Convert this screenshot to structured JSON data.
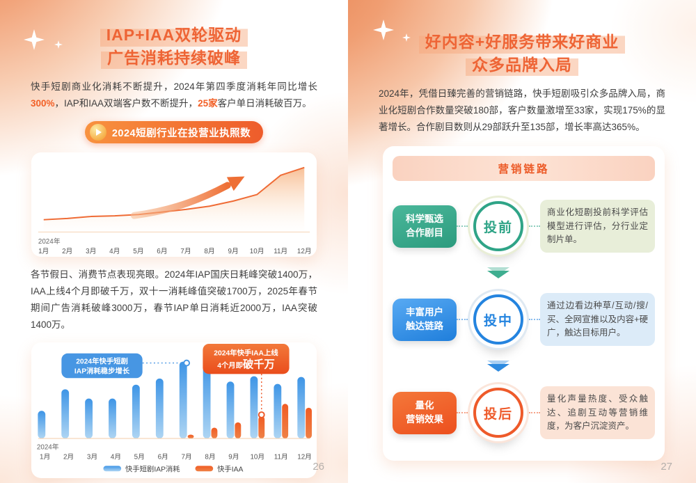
{
  "left_page": {
    "title": {
      "line1": "IAP+IAA双轮驱动",
      "line2": "广告消耗持续破峰"
    },
    "intro": {
      "pre": "快手短剧商业化消耗不断提升，2024年第四季度消耗年同比增长",
      "highlight1": "300%",
      "mid": "，IAP和IAA双端客户数不断提升，",
      "highlight2": "25家",
      "post": "客户单日消耗破百万。"
    },
    "badge": {
      "label": "2024短剧行业在投营业执照数",
      "icon": "play-icon"
    },
    "para2": "各节假日、消费节点表现亮眼。2024年IAP国庆日耗峰突破1400万，IAA上线4个月即破千万，双十一消耗峰值突破1700万，2025年春节期间广告消耗破峰3000万，春节IAP单日消耗近2000万，IAA突破1400万。",
    "page_number": "26"
  },
  "right_page": {
    "title": {
      "line1": "好内容+好服务带来好商业",
      "line2": "众多品牌入局"
    },
    "para": "2024年，凭借日臻完善的营销链路，快手短剧吸引众多品牌入局，商业化短剧合作数量突破180部，客户数量激增至33家，实现175%的显著增长。合作剧目数则从29部跃升至135部，增长率高达365%。",
    "funnel": {
      "header": "营销链路",
      "stages": [
        {
          "label_line1": "科学甄选",
          "label_line2": "合作剧目",
          "phase": "投前",
          "desc": "商业化短剧投前科学评估模型进行评估，分行业定制片单。",
          "color": "#2fa487"
        },
        {
          "label_line1": "丰富用户",
          "label_line2": "触达链路",
          "phase": "投中",
          "desc": "通过边看边种草/互动/搜/买、全网宣推以及内容+硬广，触达目标用户。",
          "color": "#2484df"
        },
        {
          "label_line1": "量化",
          "label_line2": "营销效果",
          "phase": "投后",
          "desc": "量化声量热度、受众触达、追剧互动等营销维度，为客户沉淀资产。",
          "color": "#ee5a2a"
        }
      ]
    },
    "page_number": "27"
  },
  "chart_data": [
    {
      "type": "area",
      "title": "2024短剧行业在投营业执照数",
      "x_axis_prefix": "2024年",
      "categories": [
        "1月",
        "2月",
        "3月",
        "4月",
        "5月",
        "6月",
        "7月",
        "8月",
        "9月",
        "10月",
        "11月",
        "12月"
      ],
      "values": [
        19,
        21,
        24,
        25,
        27,
        31,
        35,
        40,
        48,
        58,
        88,
        100
      ],
      "ylim": [
        0,
        100
      ],
      "grid": false,
      "line_color": "#ef6b35",
      "area_fill_top": "#f5a368",
      "annotation": "growth-arrow"
    },
    {
      "type": "bar",
      "x_axis_prefix": "2024年",
      "categories": [
        "1月",
        "2月",
        "3月",
        "4月",
        "5月",
        "6月",
        "7月",
        "8月",
        "9月",
        "10月",
        "11月",
        "12月"
      ],
      "series": [
        {
          "name": "快手短剧IAP消耗",
          "color": "#4d9de6",
          "values": [
            36,
            64,
            52,
            52,
            70,
            78,
            100,
            99,
            74,
            81,
            71,
            80
          ]
        },
        {
          "name": "快手IAA",
          "color": "#f05a28",
          "values": [
            0,
            0,
            0,
            0,
            0,
            0,
            5,
            14,
            21,
            29,
            45,
            40
          ]
        }
      ],
      "ylim": [
        0,
        100
      ],
      "grid": false,
      "legend_position": "bottom",
      "annotations": [
        {
          "line1": "2024年快手短剧",
          "line2": "IAP消耗稳步增长",
          "color": "#4796e3",
          "target_series": 0,
          "target_index": 6
        },
        {
          "line1": "2024年快手IAA上线",
          "line2_prefix": "4个月即",
          "line2_emphasis": "破千万",
          "color": "#ee5a2a",
          "target_series": 1,
          "target_index": 9
        }
      ]
    }
  ],
  "colors": {
    "title_orange": "#ee6435",
    "title_highlight": "#f6a67a",
    "accent_orange": "#f26027",
    "badge_gradient": [
      "#f8923f",
      "#ee5c2b"
    ],
    "bar_blue": "#4d9de6",
    "bar_orange": "#f05a28",
    "funnel_green": "#2fa487",
    "funnel_blue": "#2484df",
    "funnel_orange": "#ee5a2a",
    "page_number_gray": "#b4afab"
  }
}
